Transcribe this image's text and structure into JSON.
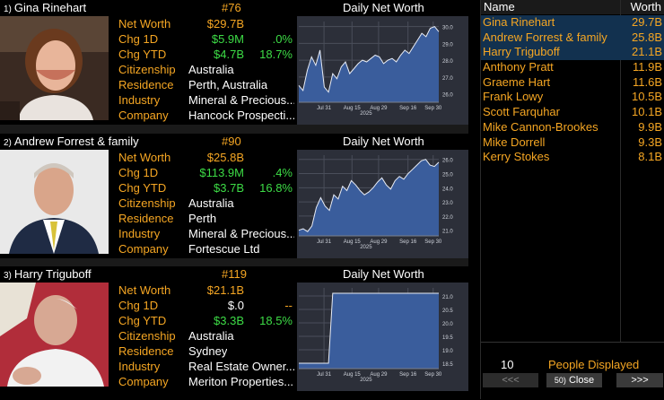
{
  "cards": [
    {
      "index": "1)",
      "name": "Gina Rinehart",
      "rank": "#76",
      "chart_title": "Daily Net Worth",
      "net_worth_label": "Net Worth",
      "net_worth": "$29.7B",
      "chg1d_label": "Chg 1D",
      "chg1d": "$5.9M",
      "chg1d_pct": ".0%",
      "chgytd_label": "Chg YTD",
      "chgytd": "$4.7B",
      "chgytd_pct": "18.7%",
      "citizenship_label": "Citizenship",
      "citizenship": "Australia",
      "residence_label": "Residence",
      "residence": "Perth, Australia",
      "industry_label": "Industry",
      "industry": "Mineral & Precious...",
      "company_label": "Company",
      "company": "Hancock Prospecti...",
      "x_ticks": [
        "Jul 31",
        "Aug 15",
        "Aug 29",
        "Sep 16",
        "Sep 30"
      ],
      "year": "2025",
      "y_ticks": [
        "30.0",
        "29.0",
        "28.0",
        "27.0",
        "26.0"
      ]
    },
    {
      "index": "2)",
      "name": "Andrew Forrest & family",
      "rank": "#90",
      "chart_title": "Daily Net Worth",
      "net_worth_label": "Net Worth",
      "net_worth": "$25.8B",
      "chg1d_label": "Chg 1D",
      "chg1d": "$113.9M",
      "chg1d_pct": ".4%",
      "chgytd_label": "Chg YTD",
      "chgytd": "$3.7B",
      "chgytd_pct": "16.8%",
      "citizenship_label": "Citizenship",
      "citizenship": "Australia",
      "residence_label": "Residence",
      "residence": "Perth",
      "industry_label": "Industry",
      "industry": "Mineral & Precious...",
      "company_label": "Company",
      "company": "Fortescue Ltd",
      "x_ticks": [
        "Jul 31",
        "Aug 15",
        "Aug 29",
        "Sep 16",
        "Sep 30"
      ],
      "year": "2025",
      "y_ticks": [
        "26.0",
        "25.0",
        "24.0",
        "23.0",
        "22.0",
        "21.0"
      ]
    },
    {
      "index": "3)",
      "name": "Harry Triguboff",
      "rank": "#119",
      "chart_title": "Daily Net Worth",
      "net_worth_label": "Net Worth",
      "net_worth": "$21.1B",
      "chg1d_label": "Chg 1D",
      "chg1d": "$.0",
      "chg1d_pct": "--",
      "chgytd_label": "Chg YTD",
      "chgytd": "$3.3B",
      "chgytd_pct": "18.5%",
      "citizenship_label": "Citizenship",
      "citizenship": "Australia",
      "residence_label": "Residence",
      "residence": "Sydney",
      "industry_label": "Industry",
      "industry": "Real Estate Owner...",
      "company_label": "Company",
      "company": "Meriton Properties...",
      "x_ticks": [
        "Jul 31",
        "Aug 15",
        "Aug 29",
        "Sep 16",
        "Sep 30"
      ],
      "year": "2025",
      "y_ticks": [
        "21.0",
        "20.5",
        "20.0",
        "19.5",
        "19.0",
        "18.5"
      ]
    }
  ],
  "panel": {
    "col_name": "Name",
    "col_worth": "Worth",
    "rows": [
      {
        "name": "Gina Rinehart",
        "worth": "29.7B",
        "selected": true
      },
      {
        "name": "Andrew Forrest & family",
        "worth": "25.8B",
        "selected": true
      },
      {
        "name": "Harry Triguboff",
        "worth": "21.1B",
        "selected": true
      },
      {
        "name": "Anthony Pratt",
        "worth": "11.9B",
        "selected": false
      },
      {
        "name": "Graeme Hart",
        "worth": "11.6B",
        "selected": false
      },
      {
        "name": "Frank Lowy",
        "worth": "10.5B",
        "selected": false
      },
      {
        "name": "Scott Farquhar",
        "worth": "10.1B",
        "selected": false
      },
      {
        "name": "Mike Cannon-Brookes",
        "worth": "9.9B",
        "selected": false
      },
      {
        "name": "Mike Dorrell",
        "worth": "9.3B",
        "selected": false
      },
      {
        "name": "Kerry Stokes",
        "worth": "8.1B",
        "selected": false
      }
    ],
    "count": "10",
    "count_label": "People Displayed",
    "prev_label": "<<<",
    "close_key": "50)",
    "close_label": "Close",
    "next_label": ">>>"
  },
  "chart_data": [
    {
      "type": "area",
      "title": "Daily Net Worth",
      "ylim": [
        25.5,
        30.3
      ],
      "values": [
        26.5,
        26.2,
        27.4,
        28.2,
        27.7,
        28.6,
        26.4,
        26.1,
        27.2,
        26.9,
        27.6,
        27.9,
        27.2,
        27.5,
        27.8,
        28.0,
        27.9,
        28.1,
        28.3,
        28.2,
        27.8,
        28.0,
        28.1,
        27.9,
        28.3,
        28.6,
        28.4,
        28.8,
        29.2,
        29.6,
        29.4,
        29.9,
        30.0,
        29.7
      ]
    },
    {
      "type": "area",
      "title": "Daily Net Worth",
      "ylim": [
        20.6,
        26.3
      ],
      "values": [
        21.0,
        21.1,
        20.9,
        21.3,
        22.6,
        23.3,
        22.7,
        22.4,
        23.5,
        23.2,
        24.1,
        23.8,
        24.5,
        24.2,
        23.8,
        23.5,
        23.7,
        24.0,
        24.4,
        24.7,
        24.2,
        23.9,
        24.5,
        24.8,
        24.6,
        25.0,
        25.3,
        25.6,
        25.9,
        26.0,
        25.6,
        25.5,
        25.8
      ]
    },
    {
      "type": "area",
      "title": "Daily Net Worth",
      "ylim": [
        18.3,
        21.3
      ],
      "values": [
        18.5,
        18.5,
        18.5,
        18.5,
        18.5,
        18.5,
        18.5,
        18.5,
        21.1,
        21.1,
        21.1,
        21.1,
        21.1,
        21.1,
        21.1,
        21.1,
        21.1,
        21.1,
        21.1,
        21.1,
        21.1,
        21.1,
        21.1,
        21.1,
        21.1,
        21.1,
        21.1,
        21.1,
        21.1,
        21.1,
        21.1,
        21.1,
        21.1,
        21.1
      ]
    }
  ]
}
